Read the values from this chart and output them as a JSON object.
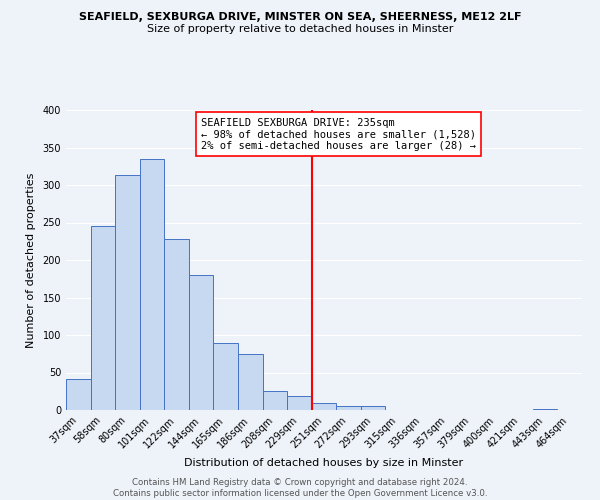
{
  "title_line1": "SEAFIELD, SEXBURGA DRIVE, MINSTER ON SEA, SHEERNESS, ME12 2LF",
  "title_line2": "Size of property relative to detached houses in Minster",
  "xlabel": "Distribution of detached houses by size in Minster",
  "ylabel": "Number of detached properties",
  "bar_labels": [
    "37sqm",
    "58sqm",
    "80sqm",
    "101sqm",
    "122sqm",
    "144sqm",
    "165sqm",
    "186sqm",
    "208sqm",
    "229sqm",
    "251sqm",
    "272sqm",
    "293sqm",
    "315sqm",
    "336sqm",
    "357sqm",
    "379sqm",
    "400sqm",
    "421sqm",
    "443sqm",
    "464sqm"
  ],
  "bar_values": [
    42,
    245,
    313,
    335,
    228,
    180,
    90,
    75,
    25,
    19,
    10,
    5,
    5,
    0,
    0,
    0,
    0,
    0,
    0,
    2,
    0
  ],
  "bar_color": "#c6d9f0",
  "bar_edge_color": "#4472c4",
  "vline_x_index": 9.5,
  "vline_color": "#ff0000",
  "annotation_title": "SEAFIELD SEXBURGA DRIVE: 235sqm",
  "annotation_line1": "← 98% of detached houses are smaller (1,528)",
  "annotation_line2": "2% of semi-detached houses are larger (28) →",
  "annotation_box_color": "#ffffff",
  "annotation_box_edge": "#ff0000",
  "ylim": [
    0,
    400
  ],
  "yticks": [
    0,
    50,
    100,
    150,
    200,
    250,
    300,
    350,
    400
  ],
  "footer_line1": "Contains HM Land Registry data © Crown copyright and database right 2024.",
  "footer_line2": "Contains public sector information licensed under the Open Government Licence v3.0.",
  "background_color": "#eef2f9",
  "grid_color": "#ffffff",
  "title_fontsize": 8.0,
  "subtitle_fontsize": 8.0,
  "axis_label_fontsize": 8.0,
  "tick_fontsize": 7.0,
  "annotation_fontsize": 7.5,
  "footer_fontsize": 6.2
}
